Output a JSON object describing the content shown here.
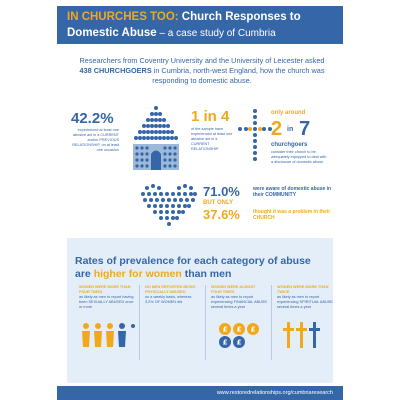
{
  "title": {
    "line1": "IN CHURCHES TOO: ",
    "line1_rest": "Church Responses to",
    "line2": "Domestic Abuse",
    "line2_sub": " – a case study of Cumbria"
  },
  "intro": {
    "part1": "Researchers from Coventry University and the University of Leicester asked ",
    "bold": "438 CHURCHGOERS",
    "part2": " in Cumbria, north-west England, how the church was responding to domestic abuse."
  },
  "stats": {
    "pct_42": "42.2%",
    "pct_42_desc": "experienced at least one abusive act in a CURRENT and/or PREVIOUS RELATIONSHIP, on at least one occasion",
    "one_in_four": "1 in 4",
    "one_in_four_desc": "of the sample have experienced at least one abusive act in a CURRENT RELATIONSHIP",
    "only_around": "only around",
    "two": "2",
    "in": "in",
    "seven": "7",
    "churchgoers": "churchgoers",
    "two_in_seven_desc": "consider their church to be adequately equipped to deal with a disclosure of domestic abuse",
    "pct_71": "71.0%",
    "pct_71_desc": "were aware of domestic abuse in their COMMUNITY",
    "but_only": "BUT ONLY",
    "pct_37": "37.6%",
    "pct_37_desc": "thought it was a problem in their CHURCH"
  },
  "panel": {
    "title_part1": "Rates of prevalence for each category of abuse are ",
    "title_orange": "higher for women",
    "title_part2": " than men",
    "columns": [
      {
        "head": "WOMEN WERE MORE THAN FOUR TIMES",
        "body": "as likely as men to report having been SEXUALLY ABUSED once or more"
      },
      {
        "head": "No men reported being PHYSICALLY ABUSED",
        "body": "on a weekly basis, whereas 3.2% OF WOMEN did"
      },
      {
        "head": "WOMEN WERE ALMOST FOUR TIMES",
        "body": "as likely as men to report experiencing FINANCIAL ABUSE several times a year"
      },
      {
        "head": "WOMEN WERE MORE THAN TWICE",
        "body": "as likely as men to report experiencing SPIRITUAL ABUSE several times a year"
      }
    ]
  },
  "footer": {
    "url": "www.restoredrelationships.org/cumbriaresearch"
  },
  "colors": {
    "brand_blue": "#3566a8",
    "accent_orange": "#f2a81d",
    "panel_bg": "#e4eef8"
  }
}
